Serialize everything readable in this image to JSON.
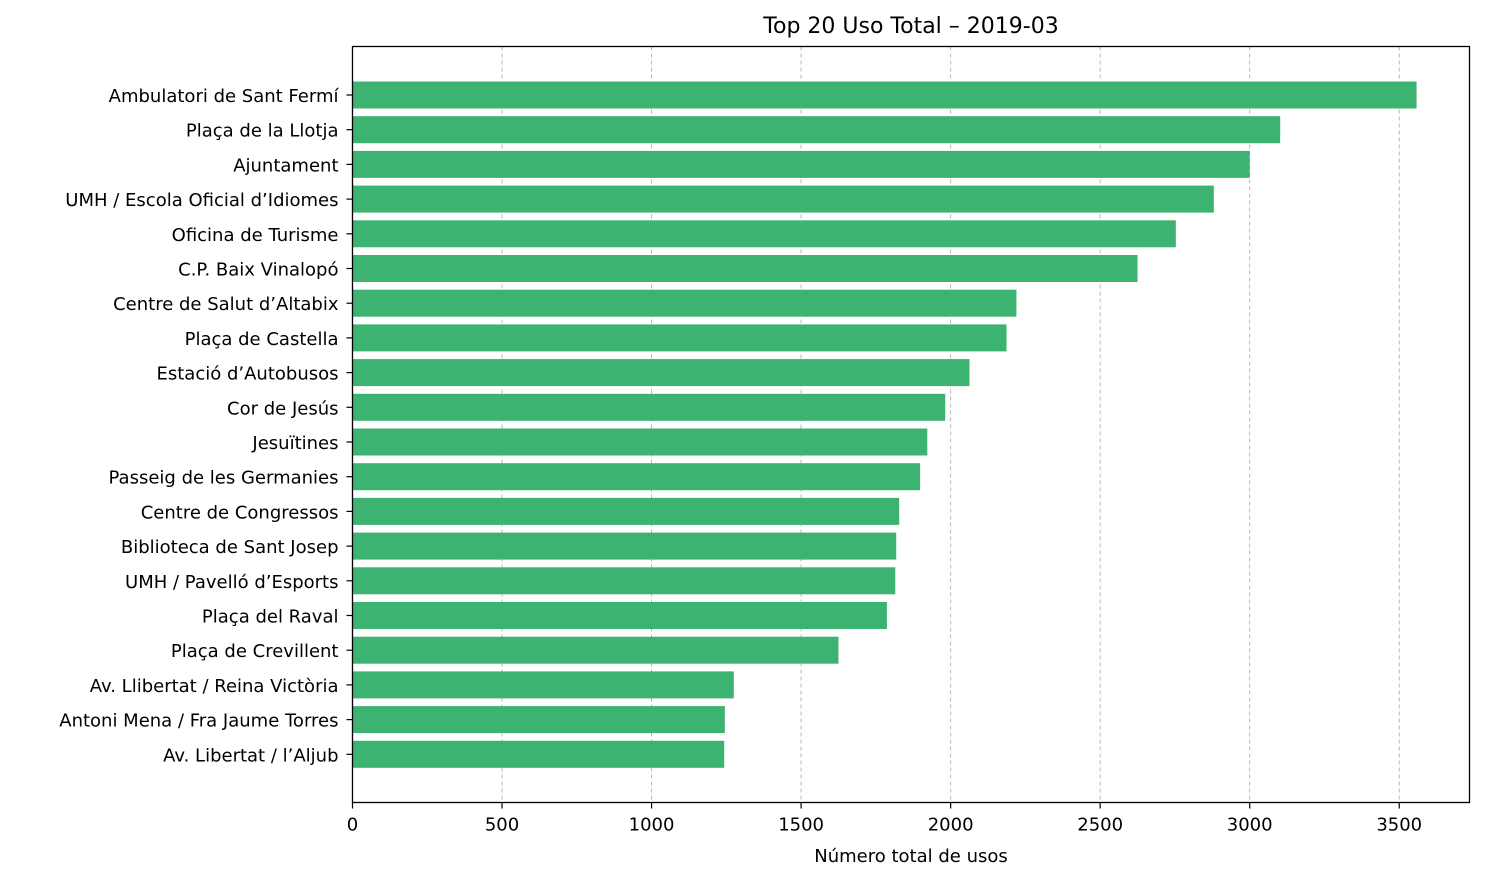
{
  "chart_data": {
    "type": "bar",
    "orientation": "horizontal",
    "title": "Top 20 Uso Total – 2019-03",
    "xlabel": "Número total de usos",
    "ylabel": "",
    "xlim": [
      0,
      3735
    ],
    "xticks": [
      0,
      500,
      1000,
      1500,
      2000,
      2500,
      3000,
      3500
    ],
    "grid": "x-dashed",
    "bar_color": "#3cb371",
    "categories": [
      "Ambulatori de Sant Fermí",
      "Plaça de la Llotja",
      "Ajuntament",
      "UMH / Escola Oficial d’Idiomes",
      "Oficina de Turisme",
      "C.P. Baix Vinalopó",
      "Centre de Salut d’Altabix",
      "Plaça de Castella",
      "Estació d’Autobusos",
      "Cor de Jesús",
      "Jesuïtines",
      "Passeig de les Germanies",
      "Centre de Congressos",
      "Biblioteca de Sant Josep",
      "UMH / Pavelló d’Esports",
      "Plaça del Raval",
      "Plaça de Crevillent",
      "Av. Llibertat / Reina Victòria",
      "Antoni Mena / Fra Jaume Torres",
      "Av. Libertat / l’Aljub"
    ],
    "values": [
      3558,
      3102,
      3000,
      2880,
      2753,
      2625,
      2220,
      2187,
      2063,
      1982,
      1922,
      1898,
      1828,
      1818,
      1815,
      1787,
      1625,
      1275,
      1245,
      1243
    ]
  }
}
